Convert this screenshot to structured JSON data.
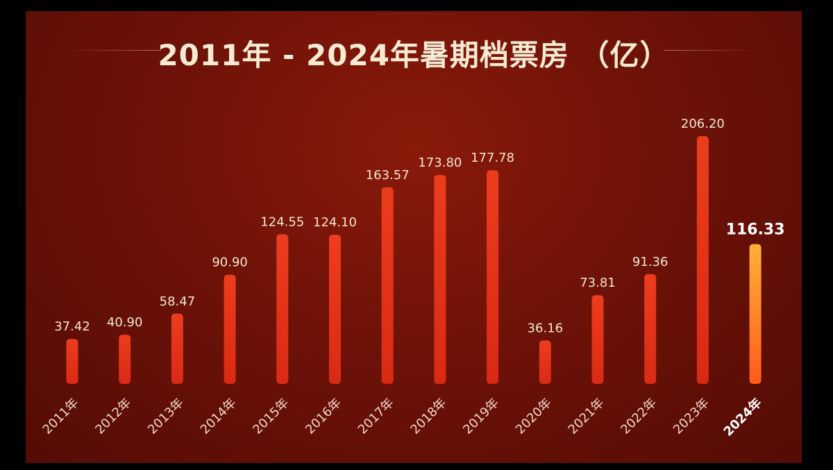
{
  "colors": {
    "background": "#6e1208",
    "bar": "#e8341a",
    "bar_highlight_top": "#ffb03a",
    "bar_highlight_bottom": "#ff5a1a",
    "text": "#f3e6d0"
  },
  "chart_data": {
    "type": "bar",
    "title": "2011年 - 2024年暑期档票房 （亿）",
    "xlabel": "",
    "ylabel": "",
    "categories": [
      "2011年",
      "2012年",
      "2013年",
      "2014年",
      "2015年",
      "2016年",
      "2017年",
      "2018年",
      "2019年",
      "2020年",
      "2021年",
      "2022年",
      "2023年",
      "2024年"
    ],
    "values": [
      37.42,
      40.9,
      58.47,
      90.9,
      124.55,
      124.1,
      163.57,
      173.8,
      177.78,
      36.16,
      73.81,
      91.36,
      206.2,
      116.33
    ],
    "value_labels": [
      "37.42",
      "40.90",
      "58.47",
      "90.90",
      "124.55",
      "124.10",
      "163.57",
      "173.80",
      "177.78",
      "36.16",
      "73.81",
      "91.36",
      "206.20",
      "116.33"
    ],
    "highlight_category": "2024年",
    "ylim": [
      0,
      206.2
    ],
    "grid": false,
    "legend": "none"
  }
}
